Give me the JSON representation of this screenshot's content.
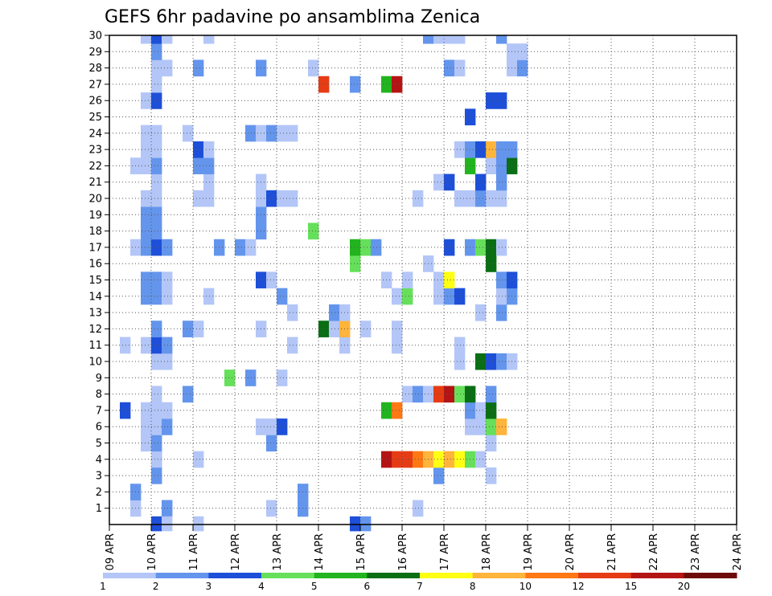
{
  "chart_data": {
    "type": "heatmap",
    "title": "GEFS 6hr padavine po ansamblima Zenica",
    "x_tick_labels": [
      "09 APR",
      "10 APR",
      "11 APR",
      "12 APR",
      "13 APR",
      "14 APR",
      "15 APR",
      "16 APR",
      "17 APR",
      "18 APR",
      "19 APR",
      "20 APR",
      "21 APR",
      "22 APR",
      "23 APR",
      "24 APR"
    ],
    "x_steps_per_day": 4,
    "x_start": "09 APR 00Z",
    "y_range": [
      0,
      30
    ],
    "y_tick_labels": [
      "1",
      "2",
      "3",
      "4",
      "5",
      "6",
      "7",
      "8",
      "9",
      "10",
      "11",
      "12",
      "13",
      "14",
      "15",
      "16",
      "17",
      "18",
      "19",
      "20",
      "21",
      "22",
      "23",
      "24",
      "25",
      "26",
      "27",
      "28",
      "29",
      "30"
    ],
    "grid": true,
    "colorbar": {
      "labels": [
        "1",
        "2",
        "3",
        "4",
        "5",
        "6",
        "7",
        "8",
        "10",
        "12",
        "15",
        "20"
      ],
      "colors": [
        "#b3c6f7",
        "#6495ed",
        "#1e4fd8",
        "#66e05a",
        "#22b41e",
        "#0a6e14",
        "#ffff14",
        "#ffb43c",
        "#ff7814",
        "#e63c14",
        "#b41414",
        "#6e0a0a"
      ]
    },
    "cells": [
      [
        1,
        2,
        0
      ],
      [
        1,
        5,
        0
      ],
      [
        1,
        5,
        1
      ],
      [
        1,
        15,
        0
      ],
      [
        1,
        18,
        0
      ],
      [
        1,
        18,
        1
      ],
      [
        1,
        29,
        0
      ],
      [
        2,
        2,
        1
      ],
      [
        2,
        18,
        0
      ],
      [
        2,
        18,
        1
      ],
      [
        3,
        4,
        0
      ],
      [
        3,
        4,
        1
      ],
      [
        3,
        31,
        0
      ],
      [
        3,
        31,
        1
      ],
      [
        3,
        36,
        0
      ],
      [
        4,
        4,
        2
      ],
      [
        4,
        4,
        0
      ],
      [
        4,
        8,
        0
      ],
      [
        4,
        26,
        10
      ],
      [
        4,
        27,
        9
      ],
      [
        4,
        28,
        9
      ],
      [
        4,
        29,
        8
      ],
      [
        4,
        30,
        7
      ],
      [
        4,
        31,
        6
      ],
      [
        4,
        32,
        7
      ],
      [
        4,
        33,
        6
      ],
      [
        4,
        34,
        3
      ],
      [
        4,
        35,
        0
      ],
      [
        5,
        3,
        0
      ],
      [
        5,
        4,
        1
      ],
      [
        5,
        15,
        1
      ],
      [
        5,
        36,
        0
      ],
      [
        6,
        3,
        0
      ],
      [
        6,
        4,
        0
      ],
      [
        6,
        5,
        1
      ],
      [
        6,
        14,
        0
      ],
      [
        6,
        15,
        0
      ],
      [
        6,
        16,
        2
      ],
      [
        6,
        34,
        0
      ],
      [
        6,
        35,
        0
      ],
      [
        6,
        36,
        3
      ],
      [
        6,
        37,
        7
      ],
      [
        7,
        1,
        2
      ],
      [
        7,
        3,
        0
      ],
      [
        7,
        4,
        0
      ],
      [
        7,
        5,
        0
      ],
      [
        7,
        26,
        4
      ],
      [
        7,
        27,
        8
      ],
      [
        7,
        34,
        1
      ],
      [
        7,
        35,
        0
      ],
      [
        7,
        36,
        5
      ],
      [
        8,
        4,
        0
      ],
      [
        8,
        7,
        1
      ],
      [
        8,
        28,
        0
      ],
      [
        8,
        29,
        1
      ],
      [
        8,
        30,
        0
      ],
      [
        8,
        31,
        9
      ],
      [
        8,
        32,
        10
      ],
      [
        8,
        33,
        3
      ],
      [
        8,
        34,
        5
      ],
      [
        8,
        36,
        1
      ],
      [
        9,
        11,
        3
      ],
      [
        9,
        13,
        1
      ],
      [
        9,
        16,
        0
      ],
      [
        10,
        4,
        0
      ],
      [
        10,
        5,
        0
      ],
      [
        10,
        33,
        0
      ],
      [
        10,
        35,
        5
      ],
      [
        10,
        36,
        2
      ],
      [
        10,
        37,
        1
      ],
      [
        10,
        38,
        0
      ],
      [
        11,
        1,
        0
      ],
      [
        11,
        3,
        0
      ],
      [
        11,
        4,
        2
      ],
      [
        11,
        5,
        1
      ],
      [
        11,
        17,
        0
      ],
      [
        11,
        22,
        0
      ],
      [
        11,
        27,
        0
      ],
      [
        11,
        33,
        0
      ],
      [
        12,
        4,
        1
      ],
      [
        12,
        7,
        1
      ],
      [
        12,
        8,
        0
      ],
      [
        12,
        14,
        0
      ],
      [
        12,
        20,
        5
      ],
      [
        12,
        21,
        0
      ],
      [
        12,
        22,
        7
      ],
      [
        12,
        24,
        0
      ],
      [
        12,
        27,
        0
      ],
      [
        13,
        17,
        0
      ],
      [
        13,
        21,
        1
      ],
      [
        13,
        22,
        0
      ],
      [
        13,
        35,
        0
      ],
      [
        13,
        37,
        1
      ],
      [
        14,
        3,
        1
      ],
      [
        14,
        4,
        1
      ],
      [
        14,
        5,
        0
      ],
      [
        14,
        9,
        0
      ],
      [
        14,
        16,
        1
      ],
      [
        14,
        27,
        0
      ],
      [
        14,
        28,
        3
      ],
      [
        14,
        31,
        0
      ],
      [
        14,
        32,
        1
      ],
      [
        14,
        33,
        2
      ],
      [
        14,
        37,
        0
      ],
      [
        14,
        38,
        1
      ],
      [
        15,
        3,
        1
      ],
      [
        15,
        4,
        1
      ],
      [
        15,
        5,
        0
      ],
      [
        15,
        14,
        2
      ],
      [
        15,
        15,
        0
      ],
      [
        15,
        26,
        0
      ],
      [
        15,
        28,
        0
      ],
      [
        15,
        31,
        0
      ],
      [
        15,
        32,
        6
      ],
      [
        15,
        37,
        1
      ],
      [
        15,
        38,
        2
      ],
      [
        16,
        23,
        3
      ],
      [
        16,
        30,
        0
      ],
      [
        16,
        36,
        5
      ],
      [
        17,
        2,
        0
      ],
      [
        17,
        3,
        1
      ],
      [
        17,
        4,
        2
      ],
      [
        17,
        5,
        1
      ],
      [
        17,
        10,
        1
      ],
      [
        17,
        12,
        1
      ],
      [
        17,
        13,
        0
      ],
      [
        17,
        23,
        4
      ],
      [
        17,
        24,
        3
      ],
      [
        17,
        25,
        1
      ],
      [
        17,
        32,
        2
      ],
      [
        17,
        34,
        1
      ],
      [
        17,
        35,
        3
      ],
      [
        17,
        36,
        5
      ],
      [
        17,
        37,
        0
      ],
      [
        18,
        3,
        1
      ],
      [
        18,
        4,
        1
      ],
      [
        18,
        14,
        1
      ],
      [
        18,
        19,
        3
      ],
      [
        19,
        3,
        1
      ],
      [
        19,
        4,
        1
      ],
      [
        19,
        14,
        1
      ],
      [
        20,
        3,
        0
      ],
      [
        20,
        4,
        0
      ],
      [
        20,
        8,
        0
      ],
      [
        20,
        9,
        0
      ],
      [
        20,
        14,
        0
      ],
      [
        20,
        15,
        2
      ],
      [
        20,
        16,
        0
      ],
      [
        20,
        17,
        0
      ],
      [
        20,
        29,
        0
      ],
      [
        20,
        33,
        0
      ],
      [
        20,
        34,
        0
      ],
      [
        20,
        35,
        1
      ],
      [
        20,
        36,
        0
      ],
      [
        20,
        37,
        0
      ],
      [
        21,
        4,
        0
      ],
      [
        21,
        9,
        0
      ],
      [
        21,
        14,
        0
      ],
      [
        21,
        31,
        0
      ],
      [
        21,
        32,
        2
      ],
      [
        21,
        35,
        2
      ],
      [
        21,
        37,
        1
      ],
      [
        22,
        2,
        0
      ],
      [
        22,
        3,
        0
      ],
      [
        22,
        4,
        1
      ],
      [
        22,
        8,
        1
      ],
      [
        22,
        9,
        1
      ],
      [
        22,
        34,
        4
      ],
      [
        22,
        36,
        0
      ],
      [
        22,
        37,
        1
      ],
      [
        22,
        38,
        5
      ],
      [
        23,
        3,
        0
      ],
      [
        23,
        4,
        0
      ],
      [
        23,
        8,
        2
      ],
      [
        23,
        9,
        0
      ],
      [
        23,
        33,
        0
      ],
      [
        23,
        34,
        1
      ],
      [
        23,
        35,
        2
      ],
      [
        23,
        36,
        7
      ],
      [
        23,
        37,
        1
      ],
      [
        23,
        38,
        1
      ],
      [
        24,
        3,
        0
      ],
      [
        24,
        4,
        0
      ],
      [
        24,
        7,
        0
      ],
      [
        24,
        13,
        1
      ],
      [
        24,
        14,
        0
      ],
      [
        24,
        15,
        1
      ],
      [
        24,
        16,
        0
      ],
      [
        24,
        17,
        0
      ],
      [
        25,
        34,
        2
      ],
      [
        26,
        3,
        0
      ],
      [
        26,
        4,
        2
      ],
      [
        26,
        36,
        2
      ],
      [
        26,
        37,
        2
      ],
      [
        27,
        4,
        0
      ],
      [
        27,
        20,
        9
      ],
      [
        27,
        23,
        1
      ],
      [
        27,
        26,
        4
      ],
      [
        27,
        27,
        10
      ],
      [
        28,
        4,
        0
      ],
      [
        28,
        5,
        0
      ],
      [
        28,
        8,
        1
      ],
      [
        28,
        14,
        1
      ],
      [
        28,
        19,
        0
      ],
      [
        28,
        32,
        1
      ],
      [
        28,
        33,
        0
      ],
      [
        28,
        38,
        0
      ],
      [
        28,
        39,
        1
      ],
      [
        29,
        4,
        1
      ],
      [
        29,
        38,
        0
      ],
      [
        29,
        39,
        0
      ],
      [
        30,
        3,
        0
      ],
      [
        30,
        4,
        2
      ],
      [
        30,
        5,
        0
      ],
      [
        30,
        9,
        0
      ],
      [
        30,
        30,
        1
      ],
      [
        30,
        31,
        0
      ],
      [
        30,
        32,
        0
      ],
      [
        30,
        33,
        0
      ],
      [
        30,
        37,
        1
      ],
      [
        0,
        4,
        2
      ],
      [
        0,
        5,
        0
      ],
      [
        0,
        8,
        0
      ],
      [
        0,
        23,
        2
      ],
      [
        0,
        24,
        1
      ]
    ]
  }
}
